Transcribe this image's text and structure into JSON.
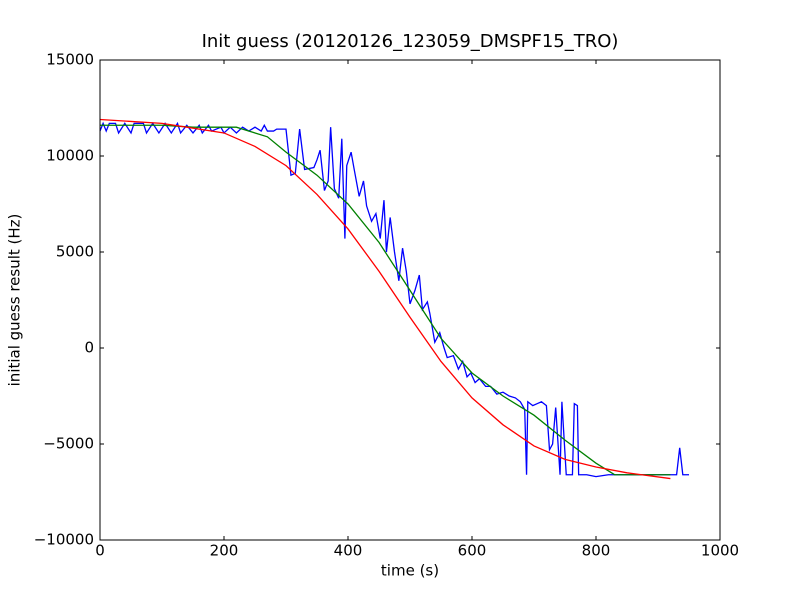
{
  "chart_data": {
    "type": "line",
    "title": "Init guess (20120126_123059_DMSPF15_TRO)",
    "xlabel": "time (s)",
    "ylabel": "initial guess result (Hz)",
    "xlim": [
      0,
      1000
    ],
    "xticks": [
      0,
      200,
      400,
      600,
      800,
      1000
    ],
    "ylim": [
      -10000,
      15000
    ],
    "yticks": [
      {
        "value": -10000,
        "label": "−10000"
      },
      {
        "value": -5000,
        "label": "−5000"
      },
      0,
      5000,
      10000,
      15000
    ],
    "series": [
      {
        "color": "#0000ff",
        "x": [
          0,
          5,
          10,
          15,
          25,
          30,
          40,
          50,
          55,
          70,
          75,
          85,
          95,
          105,
          115,
          125,
          130,
          140,
          150,
          160,
          165,
          175,
          180,
          195,
          200,
          210,
          220,
          230,
          240,
          250,
          260,
          265,
          270,
          280,
          285,
          300,
          308,
          315,
          322,
          330,
          345,
          350,
          355,
          362,
          368,
          372,
          378,
          385,
          390,
          395,
          398,
          405,
          410,
          418,
          425,
          430,
          438,
          445,
          452,
          458,
          462,
          468,
          475,
          482,
          488,
          494,
          500,
          508,
          515,
          520,
          528,
          532,
          540,
          548,
          555,
          560,
          570,
          578,
          585,
          592,
          598,
          605,
          612,
          622,
          630,
          640,
          650,
          660,
          670,
          678,
          685,
          688,
          690,
          698,
          705,
          712,
          720,
          725,
          730,
          735,
          742,
          745,
          752,
          762,
          765,
          770,
          772,
          785,
          800,
          820,
          850,
          880,
          915,
          930,
          935,
          940,
          950
        ],
        "values": [
          11300,
          11700,
          11300,
          11700,
          11700,
          11200,
          11700,
          11200,
          11700,
          11700,
          11200,
          11700,
          11200,
          11700,
          11200,
          11700,
          11200,
          11600,
          11200,
          11600,
          11200,
          11600,
          11300,
          11500,
          11200,
          11500,
          11200,
          11500,
          11300,
          11500,
          11300,
          11600,
          11300,
          11300,
          11400,
          11400,
          9000,
          9100,
          11400,
          9300,
          9400,
          9800,
          10300,
          8200,
          8700,
          11500,
          8300,
          7800,
          10900,
          5700,
          9500,
          10200,
          9300,
          7900,
          8700,
          7400,
          6600,
          7000,
          5700,
          7700,
          5000,
          6800,
          5000,
          3500,
          5200,
          4000,
          2300,
          3000,
          3800,
          2000,
          2400,
          1800,
          300,
          800,
          0,
          -500,
          -400,
          -1100,
          -700,
          -1500,
          -1300,
          -1800,
          -1600,
          -2000,
          -2000,
          -2400,
          -2300,
          -2500,
          -2600,
          -2800,
          -3200,
          -6600,
          -2800,
          -3000,
          -2900,
          -2800,
          -3000,
          -5300,
          -5000,
          -3100,
          -6600,
          -2800,
          -6600,
          -6600,
          -2900,
          -3000,
          -6600,
          -6600,
          -6700,
          -6600,
          -6600,
          -6600,
          -6600,
          -6600,
          -5200,
          -6600,
          -6600
        ]
      },
      {
        "color": "#008000",
        "x": [
          0,
          100,
          150,
          220,
          270,
          300,
          350,
          400,
          450,
          500,
          550,
          600,
          650,
          700,
          750,
          800,
          830,
          870,
          920
        ],
        "values": [
          11600,
          11600,
          11500,
          11500,
          11000,
          10200,
          9000,
          7500,
          5500,
          3000,
          500,
          -1300,
          -2500,
          -3500,
          -4800,
          -6000,
          -6600,
          -6600,
          -6600
        ]
      },
      {
        "color": "#ff0000",
        "x": [
          0,
          100,
          200,
          250,
          300,
          350,
          400,
          450,
          500,
          550,
          600,
          650,
          700,
          750,
          800,
          850,
          920
        ],
        "values": [
          11900,
          11700,
          11200,
          10500,
          9500,
          8000,
          6200,
          4000,
          1600,
          -700,
          -2600,
          -4000,
          -5100,
          -5800,
          -6200,
          -6500,
          -6800
        ]
      }
    ]
  }
}
